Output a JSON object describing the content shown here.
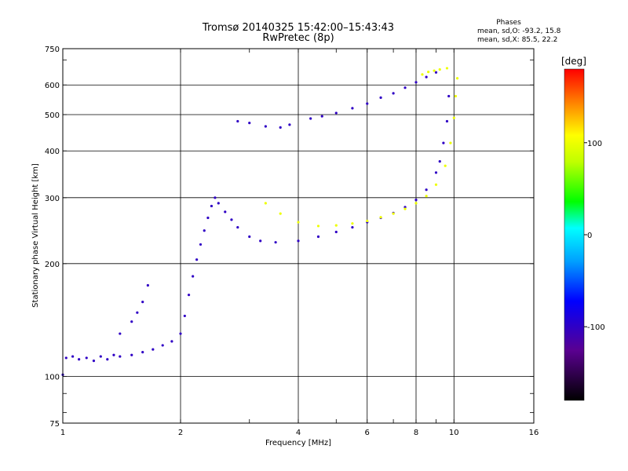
{
  "chart_data": {
    "type": "scatter",
    "title": "Tromsø 20140325 15:42:00–15:43:43",
    "subtitle": "RwPretec (8p)",
    "xlabel": "Frequency [MHz]",
    "ylabel": "Stationary phase Virtual Height [km]",
    "x_scale": "log",
    "y_scale": "log",
    "xlim": [
      1,
      16
    ],
    "ylim": [
      75,
      750
    ],
    "x_ticks": [
      "1",
      "2",
      "4",
      "6",
      "8",
      "10",
      "16"
    ],
    "y_ticks": [
      "75",
      "100",
      "200",
      "300",
      "400",
      "500",
      "600",
      "750"
    ],
    "grid": true,
    "stats": {
      "heading": "Phases",
      "line_o": "mean, sd,O:  -93.2, 15.8",
      "line_x": "mean, sd,X:  85.5, 22.2"
    },
    "colorbar": {
      "label": "[deg]",
      "range": [
        -180,
        180
      ],
      "ticks": [
        "100",
        "0",
        "-100"
      ],
      "tick_values": [
        100,
        0,
        -100
      ]
    },
    "series": [
      {
        "values": [
          [
            1.0,
            101,
            -100
          ],
          [
            1.02,
            112,
            -100
          ],
          [
            1.06,
            113,
            -100
          ],
          [
            1.1,
            111,
            -100
          ],
          [
            1.15,
            112,
            -100
          ],
          [
            1.2,
            110,
            -100
          ],
          [
            1.25,
            113,
            -100
          ],
          [
            1.3,
            111,
            -100
          ],
          [
            1.35,
            114,
            -100
          ],
          [
            1.4,
            113,
            -100
          ],
          [
            1.5,
            114,
            -100
          ],
          [
            1.6,
            116,
            -100
          ],
          [
            1.7,
            118,
            -100
          ],
          [
            1.8,
            121,
            -100
          ],
          [
            1.9,
            124,
            -100
          ],
          [
            2.0,
            130,
            -100
          ],
          [
            2.05,
            145,
            -100
          ],
          [
            2.1,
            165,
            -100
          ],
          [
            2.15,
            185,
            -100
          ],
          [
            2.2,
            205,
            -100
          ],
          [
            2.25,
            225,
            -100
          ],
          [
            2.3,
            245,
            -100
          ],
          [
            2.35,
            265,
            -100
          ],
          [
            2.4,
            285,
            -100
          ],
          [
            2.45,
            300,
            -100
          ],
          [
            2.5,
            290,
            -100
          ],
          [
            2.6,
            275,
            -100
          ],
          [
            2.7,
            262,
            -100
          ],
          [
            2.8,
            250,
            -100
          ],
          [
            3.0,
            236,
            -100
          ],
          [
            3.2,
            230,
            -100
          ],
          [
            3.5,
            228,
            -100
          ],
          [
            4.0,
            230,
            -100
          ],
          [
            4.5,
            236,
            -100
          ],
          [
            5.0,
            243,
            -100
          ],
          [
            5.5,
            250,
            -100
          ],
          [
            6.0,
            258,
            -100
          ],
          [
            6.5,
            265,
            -100
          ],
          [
            7.0,
            273,
            -100
          ],
          [
            7.5,
            283,
            -100
          ],
          [
            8.0,
            296,
            -100
          ],
          [
            8.5,
            315,
            -100
          ],
          [
            9.0,
            350,
            -100
          ],
          [
            9.2,
            375,
            -100
          ],
          [
            9.4,
            420,
            -100
          ],
          [
            9.6,
            480,
            -100
          ],
          [
            9.7,
            560,
            -100
          ]
        ]
      },
      {
        "values": [
          [
            1.4,
            130,
            -100
          ],
          [
            1.5,
            140,
            -100
          ],
          [
            1.55,
            148,
            -100
          ],
          [
            1.6,
            158,
            -100
          ],
          [
            1.65,
            175,
            -100
          ]
        ]
      },
      {
        "values": [
          [
            3.3,
            290,
            100
          ],
          [
            3.6,
            272,
            100
          ],
          [
            4.0,
            258,
            100
          ],
          [
            4.5,
            252,
            100
          ],
          [
            5.0,
            253,
            100
          ],
          [
            5.5,
            256,
            100
          ],
          [
            6.0,
            260,
            100
          ],
          [
            6.5,
            266,
            100
          ],
          [
            7.0,
            272,
            100
          ],
          [
            7.5,
            280,
            100
          ],
          [
            8.0,
            290,
            100
          ],
          [
            8.5,
            303,
            100
          ],
          [
            9.0,
            325,
            100
          ],
          [
            9.5,
            365,
            100
          ],
          [
            9.8,
            420,
            100
          ],
          [
            10.0,
            490,
            100
          ],
          [
            10.1,
            560,
            100
          ],
          [
            10.2,
            625,
            100
          ]
        ]
      },
      {
        "values": [
          [
            2.8,
            480,
            -100
          ],
          [
            3.0,
            475,
            -100
          ],
          [
            3.3,
            465,
            -100
          ],
          [
            3.6,
            462,
            -100
          ],
          [
            3.8,
            470,
            -100
          ],
          [
            4.3,
            488,
            -100
          ],
          [
            4.6,
            495,
            -100
          ],
          [
            5.0,
            505,
            -100
          ],
          [
            5.5,
            520,
            -100
          ],
          [
            6.0,
            535,
            -100
          ],
          [
            6.5,
            555,
            -100
          ],
          [
            7.0,
            570,
            -100
          ],
          [
            7.5,
            590,
            -100
          ],
          [
            8.0,
            610,
            -100
          ],
          [
            8.5,
            630,
            -100
          ],
          [
            9.0,
            648,
            -100
          ]
        ]
      },
      {
        "values": [
          [
            8.3,
            640,
            100
          ],
          [
            8.6,
            650,
            100
          ],
          [
            8.9,
            655,
            100
          ],
          [
            9.2,
            660,
            100
          ],
          [
            9.6,
            665,
            100
          ]
        ]
      }
    ]
  }
}
